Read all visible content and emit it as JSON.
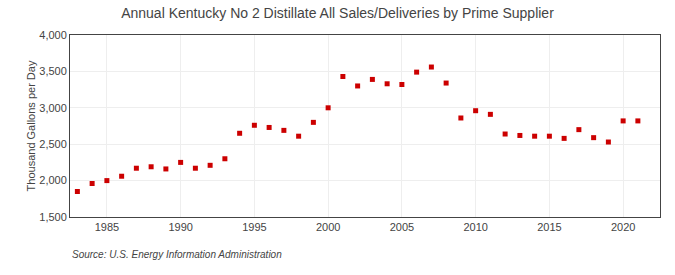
{
  "chart_data": {
    "type": "scatter",
    "title": "Annual Kentucky No 2 Distillate All Sales/Deliveries by Prime Supplier",
    "y_label": "Thousand Gallons per Day",
    "annotations": [
      "Source: U.S. Energy Information Administration"
    ],
    "x": [
      1983,
      1984,
      1985,
      1986,
      1987,
      1988,
      1989,
      1990,
      1991,
      1992,
      1993,
      1994,
      1995,
      1996,
      1997,
      1998,
      1999,
      2000,
      2001,
      2002,
      2003,
      2004,
      2005,
      2006,
      2007,
      2008,
      2009,
      2010,
      2011,
      2012,
      2013,
      2014,
      2015,
      2016,
      2017,
      2018,
      2019,
      2020,
      2021
    ],
    "values": [
      1850,
      1960,
      2000,
      2060,
      2170,
      2190,
      2160,
      2250,
      2170,
      2210,
      2300,
      2650,
      2760,
      2730,
      2690,
      2610,
      2800,
      3000,
      3430,
      3300,
      3390,
      3330,
      3320,
      3490,
      3560,
      3340,
      2860,
      2960,
      2910,
      2640,
      2620,
      2610,
      2610,
      2580,
      2700,
      2590,
      2530,
      2820,
      2820
    ],
    "color": "#cc0000",
    "marker": "square",
    "xlim": [
      1982.5,
      2022.5
    ],
    "xticks": [
      1985,
      1990,
      1995,
      2000,
      2005,
      2010,
      2015,
      2020
    ],
    "ylim": [
      1500,
      4000
    ],
    "yticks": [
      {
        "value": 1500,
        "label": "1,500"
      },
      {
        "value": 2000,
        "label": "2,000"
      },
      {
        "value": 2500,
        "label": "2,500"
      },
      {
        "value": 3000,
        "label": "3,000"
      },
      {
        "value": 3500,
        "label": "3,500"
      },
      {
        "value": 4000,
        "label": "4,000"
      }
    ],
    "grid": true
  }
}
